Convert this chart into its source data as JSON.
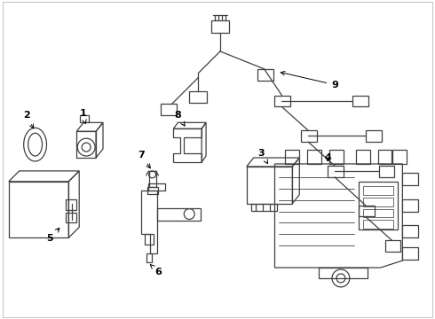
{
  "bg_color": "#ffffff",
  "line_color": "#404040",
  "fig_width": 4.9,
  "fig_height": 3.6,
  "dpi": 100,
  "border_color": "#aaaaaa",
  "label_fs": 8,
  "arrow_lw": 0.7
}
